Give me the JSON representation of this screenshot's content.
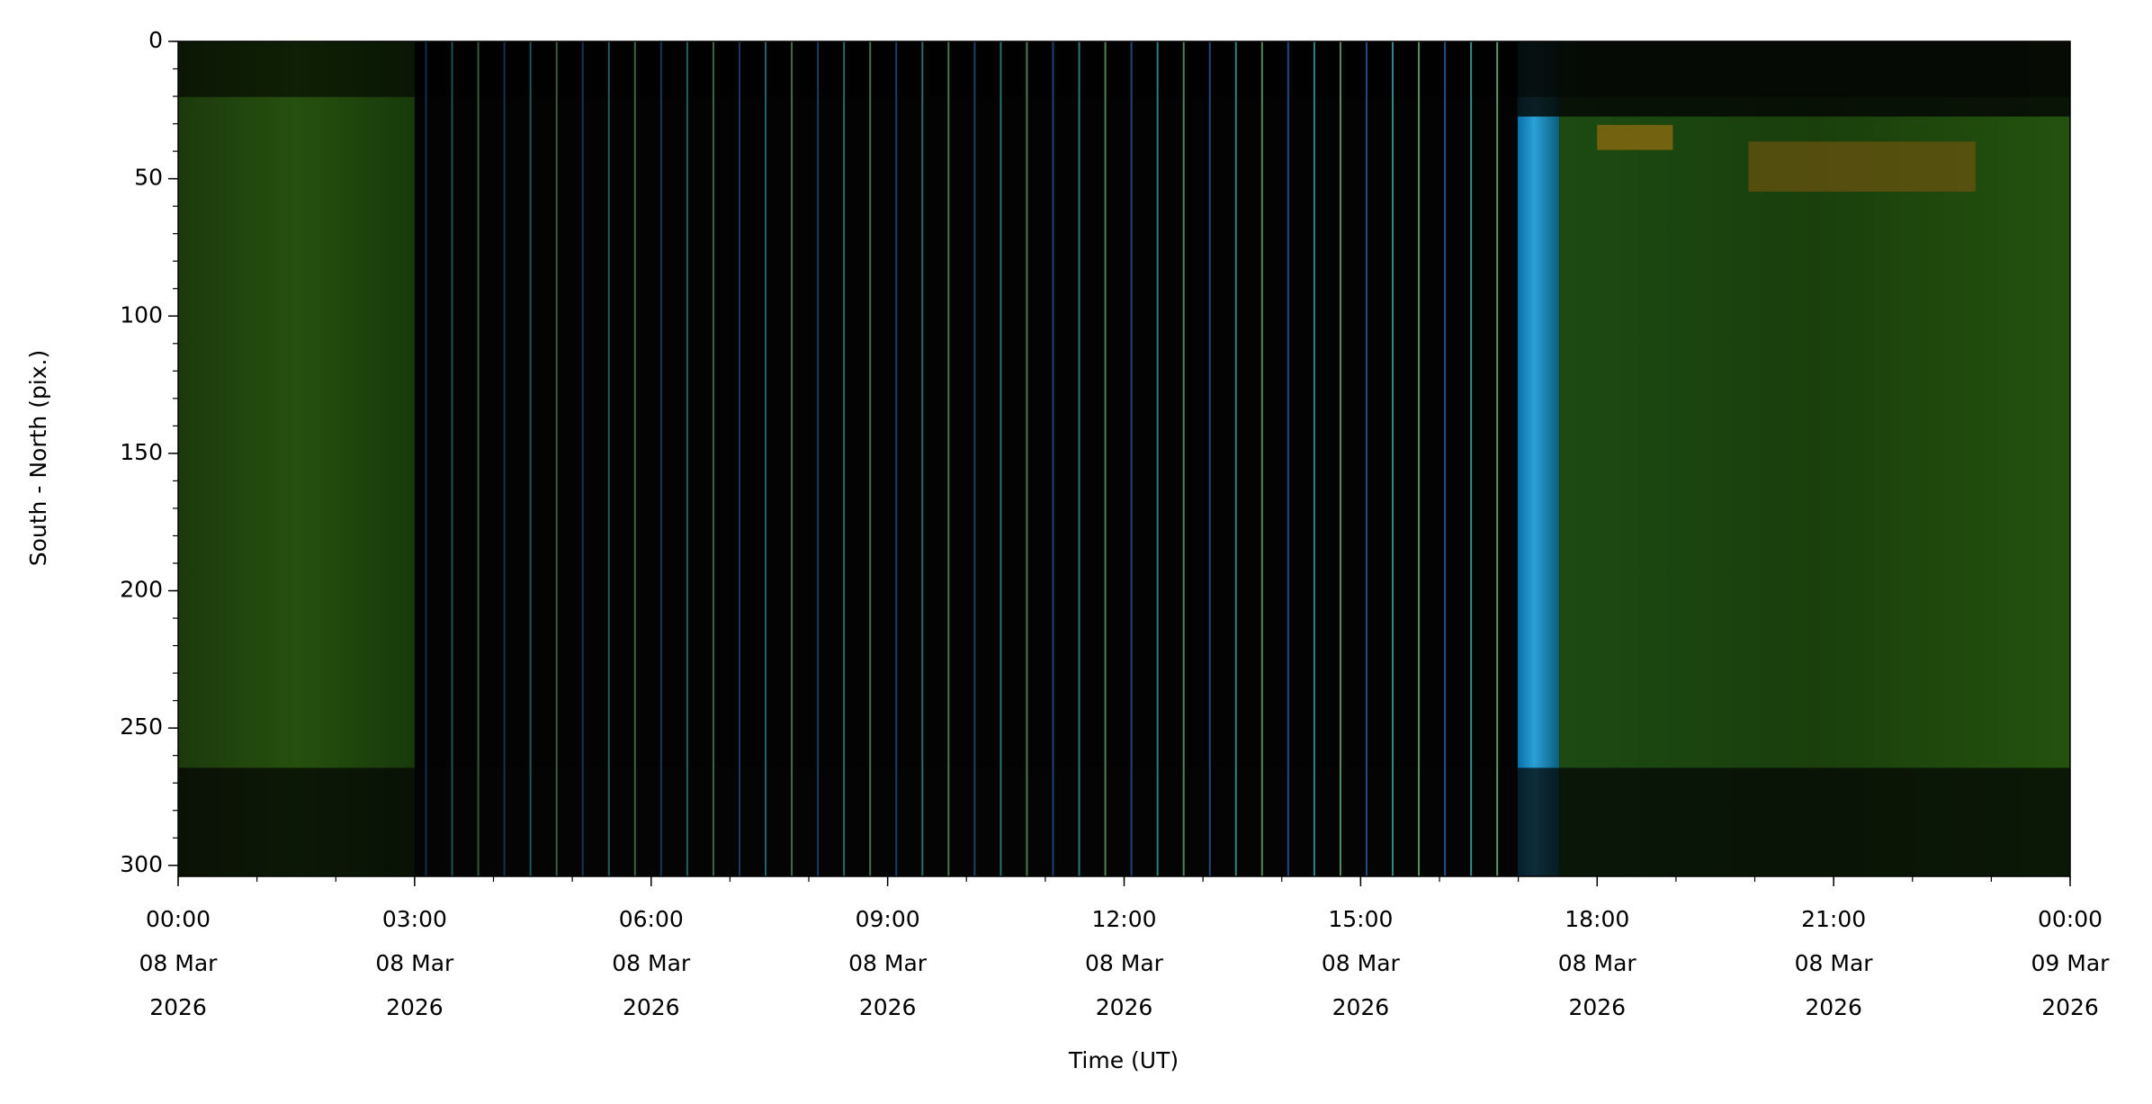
{
  "chart_data": {
    "type": "image",
    "xlabel": "Time (UT)",
    "ylabel": "South - North (pix.)",
    "xlim": [
      "2026-03-08T00:00",
      "2026-03-09T00:00"
    ],
    "xticks": [
      {
        "value": "2026-03-08T00:00",
        "label": [
          "00:00",
          "08 Mar",
          "2026"
        ]
      },
      {
        "value": "2026-03-08T03:00",
        "label": [
          "03:00",
          "08 Mar",
          "2026"
        ]
      },
      {
        "value": "2026-03-08T06:00",
        "label": [
          "06:00",
          "08 Mar",
          "2026"
        ]
      },
      {
        "value": "2026-03-08T09:00",
        "label": [
          "09:00",
          "08 Mar",
          "2026"
        ]
      },
      {
        "value": "2026-03-08T12:00",
        "label": [
          "12:00",
          "08 Mar",
          "2026"
        ]
      },
      {
        "value": "2026-03-08T15:00",
        "label": [
          "15:00",
          "08 Mar",
          "2026"
        ]
      },
      {
        "value": "2026-03-08T18:00",
        "label": [
          "18:00",
          "08 Mar",
          "2026"
        ]
      },
      {
        "value": "2026-03-08T21:00",
        "label": [
          "21:00",
          "08 Mar",
          "2026"
        ]
      },
      {
        "value": "2026-03-09T00:00",
        "label": [
          "00:00",
          "09 Mar",
          "2026"
        ]
      }
    ],
    "xminor_step_hours": 1,
    "ylim": [
      0,
      304
    ],
    "y_inverted": true,
    "yticks": [
      0,
      50,
      100,
      150,
      200,
      250,
      300
    ],
    "yminor_step": 10
  }
}
